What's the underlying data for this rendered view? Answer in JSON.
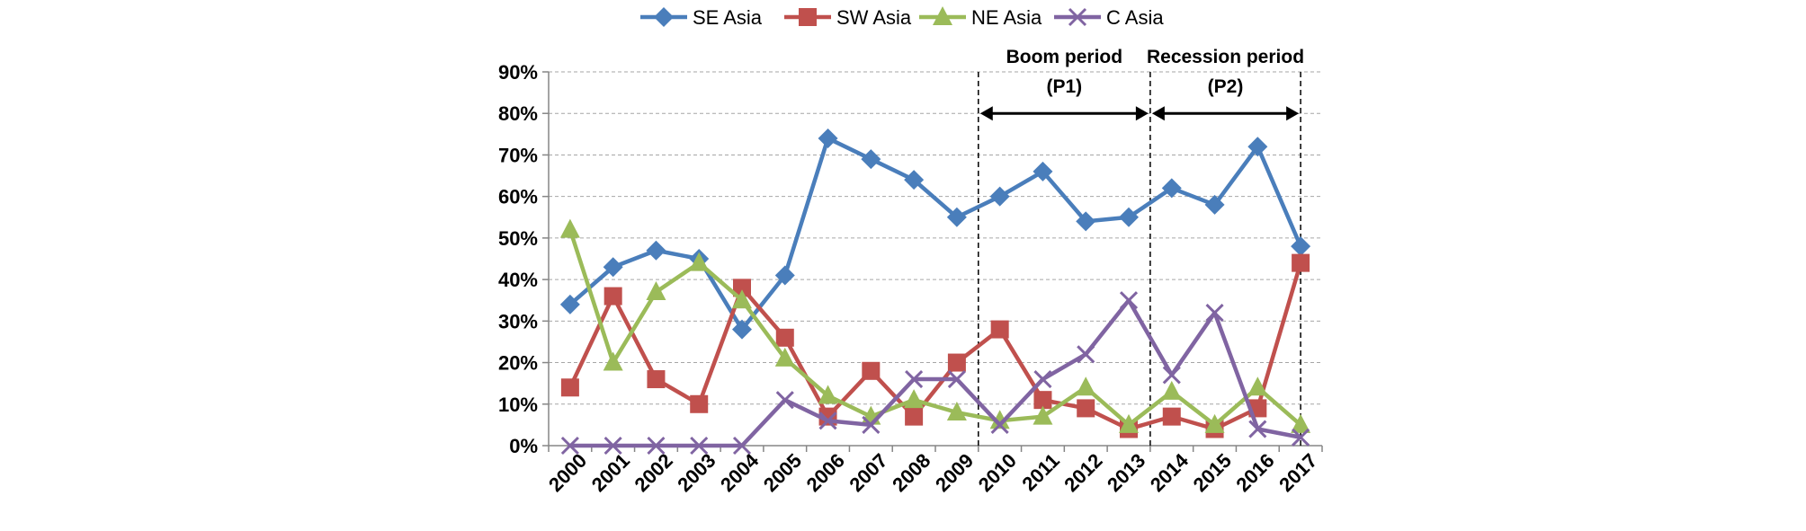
{
  "chart_data": {
    "type": "line",
    "categories": [
      "2000",
      "2001",
      "2002",
      "2003",
      "2004",
      "2005",
      "2006",
      "2007",
      "2008",
      "2009",
      "2010",
      "2011",
      "2012",
      "2013",
      "2014",
      "2015",
      "2016",
      "2017"
    ],
    "ylim": [
      0,
      90
    ],
    "yticks": [
      0,
      10,
      20,
      30,
      40,
      50,
      60,
      70,
      80,
      90
    ],
    "ytick_labels": [
      "0%",
      "10%",
      "20%",
      "30%",
      "40%",
      "50%",
      "60%",
      "70%",
      "80%",
      "90%"
    ],
    "grid": "horizontal dashed",
    "legend_position": "top",
    "series": [
      {
        "name": "SE Asia",
        "color": "#4a7ebb",
        "marker": "diamond",
        "values": [
          34,
          43,
          47,
          45,
          28,
          41,
          74,
          69,
          64,
          55,
          60,
          66,
          54,
          55,
          62,
          58,
          72,
          48
        ]
      },
      {
        "name": "SW Asia",
        "color": "#c0504d",
        "marker": "square",
        "values": [
          14,
          36,
          16,
          10,
          38,
          26,
          7,
          18,
          7,
          20,
          28,
          11,
          9,
          4,
          7,
          4,
          9,
          44
        ]
      },
      {
        "name": "NE Asia",
        "color": "#9bbb59",
        "marker": "triangle",
        "values": [
          52,
          20,
          37,
          44,
          35,
          21,
          12,
          7,
          11,
          8,
          6,
          7,
          14,
          5,
          13,
          5,
          14,
          5
        ]
      },
      {
        "name": "C Asia",
        "color": "#8064a2",
        "marker": "x",
        "values": [
          0,
          0,
          0,
          0,
          0,
          11,
          6,
          5,
          16,
          16,
          5,
          16,
          22,
          35,
          17,
          32,
          4,
          2
        ]
      }
    ],
    "annotations": [
      {
        "line1": "Boom period",
        "line2": "(P1)",
        "from": "2009",
        "to": "2013"
      },
      {
        "line1": "Recession period",
        "line2": "(P2)",
        "from": "2013",
        "to": "2017"
      }
    ]
  }
}
